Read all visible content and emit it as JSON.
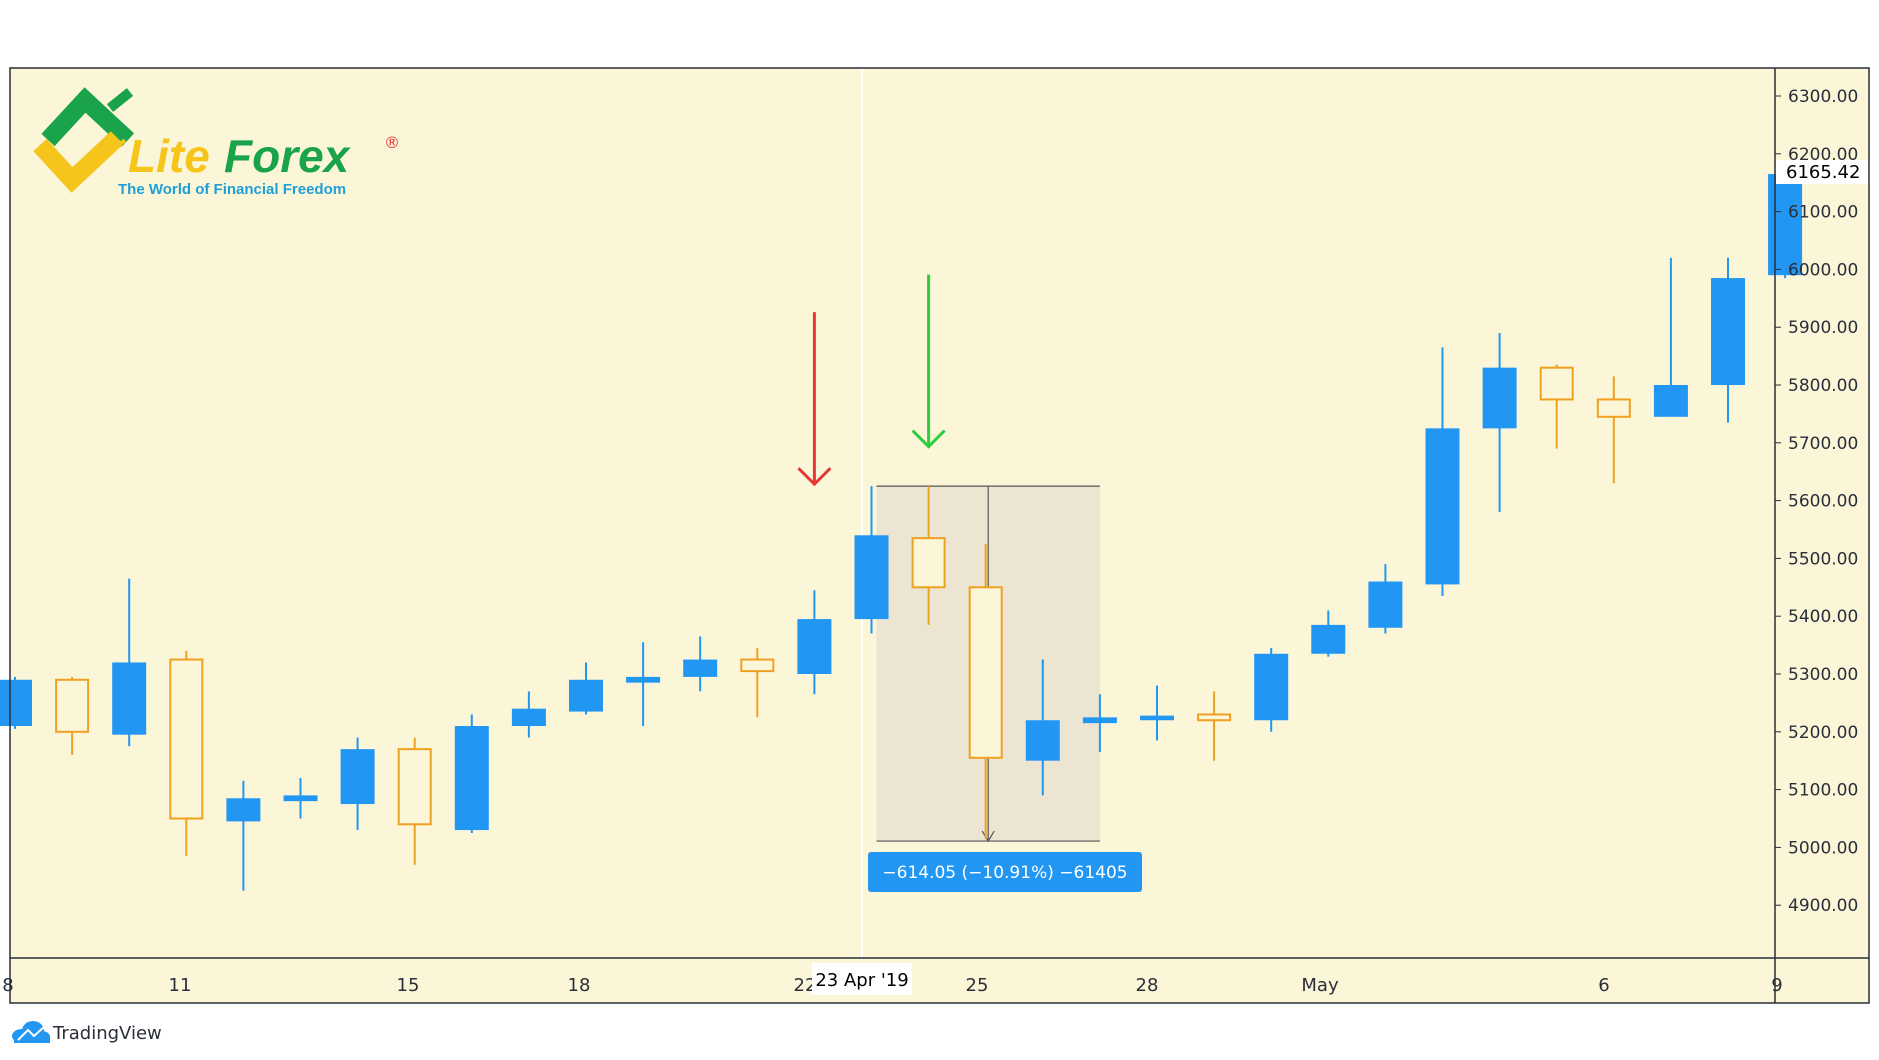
{
  "brand": {
    "name_part1": "Lite",
    "name_part2": "Forex",
    "registered": "®",
    "tagline": "The World of Financial Freedom"
  },
  "footer": {
    "tradingview_label": "TradingView"
  },
  "colors": {
    "background": "#fcf6d8",
    "bull": "#2196f3",
    "bear": "#f0a020",
    "red_arrow": "#e53935",
    "green_arrow": "#2ecc40",
    "measure_zone": "#ebe5d2"
  },
  "chart_data": {
    "type": "candlestick",
    "title": "",
    "ylim": [
      4800,
      6350
    ],
    "y_ticks": [
      "6300.00",
      "6200.00",
      "6100.00",
      "6000.00",
      "5900.00",
      "5800.00",
      "5700.00",
      "5600.00",
      "5500.00",
      "5400.00",
      "5300.00",
      "5200.00",
      "5100.00",
      "5000.00",
      "4900.00"
    ],
    "x_tick_labels": [
      "8",
      "11",
      "15",
      "18",
      "22",
      "25",
      "28",
      "May",
      "6",
      "9"
    ],
    "current_price_label": "6165.42",
    "crosshair_date_label": "23 Apr '19",
    "measure_label": "−614.05 (−10.91%) −61405",
    "measure": {
      "from": 5625,
      "to": 5011,
      "from_candle": 15,
      "to_candle": 18
    },
    "arrows": [
      {
        "color": "red",
        "candle": 14,
        "tip": 5625
      },
      {
        "color": "green",
        "candle": 16,
        "tip": 5690
      }
    ],
    "candles": [
      {
        "o": 5210,
        "h": 5295,
        "l": 5205,
        "c": 5290
      },
      {
        "o": 5290,
        "h": 5295,
        "l": 5160,
        "c": 5200
      },
      {
        "o": 5195,
        "h": 5465,
        "l": 5175,
        "c": 5320
      },
      {
        "o": 5325,
        "h": 5340,
        "l": 4985,
        "c": 5050
      },
      {
        "o": 5045,
        "h": 5115,
        "l": 4925,
        "c": 5085
      },
      {
        "o": 5080,
        "h": 5120,
        "l": 5050,
        "c": 5090
      },
      {
        "o": 5075,
        "h": 5190,
        "l": 5030,
        "c": 5170
      },
      {
        "o": 5170,
        "h": 5190,
        "l": 4970,
        "c": 5040
      },
      {
        "o": 5030,
        "h": 5230,
        "l": 5025,
        "c": 5210
      },
      {
        "o": 5210,
        "h": 5270,
        "l": 5190,
        "c": 5240
      },
      {
        "o": 5235,
        "h": 5320,
        "l": 5230,
        "c": 5290
      },
      {
        "o": 5285,
        "h": 5355,
        "l": 5210,
        "c": 5295
      },
      {
        "o": 5295,
        "h": 5365,
        "l": 5270,
        "c": 5325
      },
      {
        "o": 5325,
        "h": 5345,
        "l": 5225,
        "c": 5305
      },
      {
        "o": 5300,
        "h": 5445,
        "l": 5265,
        "c": 5395
      },
      {
        "o": 5395,
        "h": 5625,
        "l": 5370,
        "c": 5540
      },
      {
        "o": 5535,
        "h": 5625,
        "l": 5385,
        "c": 5450
      },
      {
        "o": 5450,
        "h": 5525,
        "l": 5015,
        "c": 5155
      },
      {
        "o": 5150,
        "h": 5325,
        "l": 5090,
        "c": 5220
      },
      {
        "o": 5215,
        "h": 5265,
        "l": 5165,
        "c": 5225
      },
      {
        "o": 5220,
        "h": 5280,
        "l": 5185,
        "c": 5228
      },
      {
        "o": 5230,
        "h": 5270,
        "l": 5150,
        "c": 5220
      },
      {
        "o": 5220,
        "h": 5345,
        "l": 5200,
        "c": 5335
      },
      {
        "o": 5335,
        "h": 5410,
        "l": 5330,
        "c": 5385
      },
      {
        "o": 5380,
        "h": 5490,
        "l": 5370,
        "c": 5460
      },
      {
        "o": 5455,
        "h": 5865,
        "l": 5435,
        "c": 5725
      },
      {
        "o": 5725,
        "h": 5890,
        "l": 5580,
        "c": 5830
      },
      {
        "o": 5830,
        "h": 5835,
        "l": 5690,
        "c": 5775
      },
      {
        "o": 5775,
        "h": 5815,
        "l": 5630,
        "c": 5745
      },
      {
        "o": 5745,
        "h": 6020,
        "l": 5745,
        "c": 5800
      },
      {
        "o": 5800,
        "h": 6020,
        "l": 5735,
        "c": 5985
      },
      {
        "o": 5990,
        "h": 6165,
        "l": 5985,
        "c": 6165
      }
    ]
  }
}
